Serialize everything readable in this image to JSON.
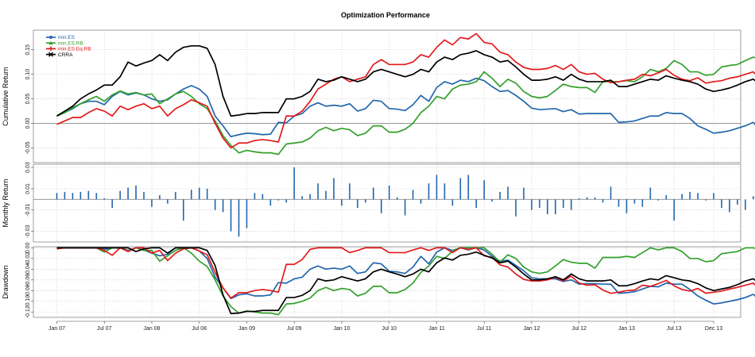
{
  "chart_data": {
    "type": "line",
    "title": "Optimization Performance",
    "x_ticks": [
      "Jan 07",
      "Jul 07",
      "Jan 08",
      "Jul 08",
      "Jan 09",
      "Jul 09",
      "Jan 10",
      "Jul 10",
      "Jan 11",
      "Jul 11",
      "Jan 12",
      "Jul 12",
      "Jan 13",
      "Jul 13",
      "Dec 13"
    ],
    "legend": {
      "position": "top-left"
    },
    "colors": {
      "min.ES": "#2166ac",
      "min.ES.RB": "#33a02c",
      "min.ES.Eq.RB": "#e31a1c",
      "CRRA": "#000000"
    },
    "panels": [
      {
        "name": "cumulative",
        "ylabel": "Cumulative Return",
        "ylim": [
          -0.08,
          0.19
        ],
        "y_ticks": [
          -0.05,
          0.0,
          0.05,
          0.1,
          0.15
        ],
        "y_tick_labels": [
          "-0.05",
          "0.00",
          "0.05",
          "0.10",
          "0.15"
        ],
        "zero_line": true,
        "series": [
          {
            "name": "min.ES",
            "values": [
              0.015,
              0.022,
              0.03,
              0.04,
              0.045,
              0.045,
              0.038,
              0.055,
              0.065,
              0.058,
              0.062,
              0.058,
              0.05,
              0.045,
              0.048,
              0.06,
              0.07,
              0.077,
              0.07,
              0.055,
              0.015,
              -0.005,
              -0.027,
              -0.023,
              -0.02,
              -0.021,
              -0.023,
              -0.022,
              0.002,
              0.001,
              0.015,
              0.02,
              0.035,
              0.042,
              0.035,
              0.037,
              0.035,
              0.04,
              0.025,
              0.03,
              0.047,
              0.045,
              0.03,
              0.029,
              0.026,
              0.038,
              0.057,
              0.045,
              0.073,
              0.085,
              0.08,
              0.088,
              0.085,
              0.092,
              0.087,
              0.075,
              0.065,
              0.067,
              0.057,
              0.045,
              0.031,
              0.028,
              0.029,
              0.03,
              0.024,
              0.028,
              0.019,
              0.02,
              0.02,
              0.02,
              0.02,
              0.002,
              0.003,
              0.005,
              0.01,
              0.015,
              0.015,
              0.022,
              0.02,
              0.02,
              0.01,
              -0.005,
              -0.012,
              -0.02,
              -0.018,
              -0.015,
              -0.01,
              -0.005,
              0.002,
              -0.015
            ]
          },
          {
            "name": "min.ES.RB",
            "values": [
              0.015,
              0.022,
              0.032,
              0.04,
              0.048,
              0.055,
              0.045,
              0.058,
              0.066,
              0.06,
              0.063,
              0.058,
              0.06,
              0.04,
              0.05,
              0.06,
              0.065,
              0.055,
              0.04,
              0.03,
              0.005,
              -0.025,
              -0.045,
              -0.06,
              -0.055,
              -0.058,
              -0.06,
              -0.06,
              -0.063,
              -0.042,
              -0.04,
              -0.038,
              -0.03,
              -0.015,
              -0.008,
              -0.015,
              -0.01,
              -0.013,
              -0.025,
              -0.02,
              -0.005,
              -0.005,
              -0.018,
              -0.018,
              -0.012,
              0.0,
              0.022,
              0.035,
              0.055,
              0.05,
              0.07,
              0.078,
              0.08,
              0.085,
              0.105,
              0.092,
              0.075,
              0.09,
              0.082,
              0.065,
              0.055,
              0.052,
              0.055,
              0.067,
              0.08,
              0.075,
              0.073,
              0.073,
              0.063,
              0.085,
              0.085,
              0.085,
              0.087,
              0.085,
              0.095,
              0.11,
              0.105,
              0.112,
              0.128,
              0.12,
              0.105,
              0.105,
              0.098,
              0.1,
              0.115,
              0.118,
              0.12,
              0.128,
              0.135,
              0.13
            ]
          },
          {
            "name": "min.ES.Eq.RB",
            "values": [
              -0.002,
              0.005,
              0.012,
              0.012,
              0.022,
              0.03,
              0.025,
              0.015,
              0.035,
              0.028,
              0.035,
              0.04,
              0.03,
              0.035,
              0.015,
              0.03,
              0.038,
              0.048,
              0.042,
              0.035,
              0.0,
              -0.03,
              -0.05,
              -0.04,
              -0.04,
              -0.035,
              -0.033,
              -0.035,
              -0.038,
              0.015,
              0.015,
              0.025,
              0.045,
              0.07,
              0.08,
              0.09,
              0.095,
              0.085,
              0.09,
              0.095,
              0.12,
              0.13,
              0.12,
              0.12,
              0.12,
              0.125,
              0.14,
              0.135,
              0.155,
              0.17,
              0.16,
              0.175,
              0.172,
              0.183,
              0.165,
              0.162,
              0.145,
              0.14,
              0.125,
              0.114,
              0.11,
              0.11,
              0.112,
              0.118,
              0.11,
              0.12,
              0.105,
              0.1,
              0.102,
              0.09,
              0.083,
              0.085,
              0.088,
              0.09,
              0.1,
              0.097,
              0.103,
              0.11,
              0.098,
              0.09,
              0.087,
              0.093,
              0.082,
              0.085,
              0.087,
              0.092,
              0.095,
              0.1,
              0.105,
              0.088
            ]
          },
          {
            "name": "CRRA",
            "values": [
              0.015,
              0.025,
              0.035,
              0.05,
              0.06,
              0.068,
              0.078,
              0.078,
              0.095,
              0.125,
              0.117,
              0.123,
              0.128,
              0.14,
              0.128,
              0.145,
              0.155,
              0.158,
              0.158,
              0.153,
              0.12,
              0.055,
              0.015,
              0.017,
              0.02,
              0.02,
              0.022,
              0.022,
              0.022,
              0.05,
              0.05,
              0.055,
              0.065,
              0.09,
              0.085,
              0.088,
              0.095,
              0.09,
              0.085,
              0.09,
              0.105,
              0.11,
              0.105,
              0.1,
              0.095,
              0.1,
              0.11,
              0.105,
              0.125,
              0.135,
              0.13,
              0.14,
              0.143,
              0.148,
              0.14,
              0.135,
              0.125,
              0.128,
              0.115,
              0.1,
              0.088,
              0.088,
              0.09,
              0.095,
              0.088,
              0.1,
              0.09,
              0.085,
              0.085,
              0.085,
              0.088,
              0.075,
              0.075,
              0.08,
              0.085,
              0.09,
              0.088,
              0.097,
              0.092,
              0.088,
              0.085,
              0.08,
              0.07,
              0.065,
              0.068,
              0.072,
              0.078,
              0.085,
              0.09,
              0.078
            ]
          }
        ]
      },
      {
        "name": "monthly",
        "ylabel": "Monthly Return",
        "ylim": [
          -0.04,
          0.033
        ],
        "y_ticks": [
          -0.03,
          -0.01,
          0.01,
          0.03
        ],
        "y_tick_labels": [
          "-0.03",
          "-0.01",
          "0.01",
          "0.03"
        ],
        "zero_line": true,
        "series": [
          {
            "name": "min.ES",
            "values": [
              0.006,
              0.007,
              0.006,
              0.007,
              0.008,
              0.006,
              0.001,
              -0.008,
              0.008,
              0.011,
              0.013,
              0.007,
              -0.007,
              0.004,
              -0.004,
              0.007,
              -0.02,
              0.009,
              0.011,
              0.01,
              -0.01,
              -0.012,
              -0.03,
              -0.035,
              -0.027,
              0.006,
              0.005,
              -0.006,
              -0.001,
              -0.003,
              0.03,
              0.003,
              0.005,
              0.015,
              0.008,
              0.02,
              -0.006,
              0.015,
              -0.008,
              -0.003,
              0.011,
              -0.013,
              0.013,
              0.002,
              -0.015,
              0.009,
              -0.004,
              0.015,
              0.023,
              0.015,
              -0.006,
              0.02,
              0.023,
              -0.008,
              0.018,
              -0.002,
              0.007,
              0.012,
              -0.016,
              0.011,
              -0.01,
              -0.008,
              -0.014,
              -0.014,
              -0.008,
              -0.01,
              0.001,
              0.002,
              0.002,
              -0.003,
              0.012,
              -0.007,
              -0.013,
              -0.004,
              -0.007,
              0.011,
              -0.001,
              0.004,
              -0.02,
              0.005,
              0.007,
              0.006,
              -0.001,
              0.006,
              -0.008,
              -0.012,
              -0.005,
              -0.01,
              0.003,
              0.004,
              0.008,
              0.007,
              -0.017
            ]
          }
        ]
      },
      {
        "name": "drawdown",
        "ylabel": "Drawdown",
        "ylim": [
          -0.13,
          0.002
        ],
        "y_ticks": [
          -0.12,
          -0.1,
          -0.08,
          -0.06,
          -0.04,
          -0.02,
          0.0
        ],
        "y_tick_labels": [
          "-0.12",
          "-0.10",
          "-0.08",
          "-0.06",
          "-0.04",
          "-0.02",
          "0.00"
        ],
        "zero_line": false,
        "series": [
          {
            "name": "min.ES",
            "values": [
              0,
              0,
              0,
              0,
              0,
              0,
              -0.003,
              0,
              0,
              -0.005,
              0,
              -0.004,
              -0.01,
              -0.015,
              -0.012,
              0,
              0,
              0,
              -0.006,
              -0.02,
              -0.055,
              -0.075,
              -0.095,
              -0.088,
              -0.086,
              -0.09,
              -0.09,
              -0.088,
              -0.065,
              -0.066,
              -0.058,
              -0.055,
              -0.04,
              -0.034,
              -0.04,
              -0.038,
              -0.04,
              -0.034,
              -0.048,
              -0.045,
              -0.028,
              -0.03,
              -0.044,
              -0.045,
              -0.048,
              -0.036,
              -0.016,
              -0.03,
              -0.008,
              0,
              -0.005,
              0,
              -0.004,
              0,
              -0.004,
              -0.016,
              -0.025,
              -0.023,
              -0.033,
              -0.043,
              -0.056,
              -0.058,
              -0.058,
              -0.058,
              -0.063,
              -0.06,
              -0.068,
              -0.067,
              -0.067,
              -0.068,
              -0.068,
              -0.085,
              -0.084,
              -0.082,
              -0.077,
              -0.072,
              -0.073,
              -0.066,
              -0.068,
              -0.068,
              -0.078,
              -0.09,
              -0.098,
              -0.105,
              -0.103,
              -0.1,
              -0.097,
              -0.093,
              -0.087,
              -0.1
            ]
          },
          {
            "name": "min.ES.RB",
            "values": [
              0,
              0,
              0,
              0,
              0,
              0,
              -0.008,
              0,
              0,
              -0.006,
              0,
              -0.005,
              -0.005,
              -0.025,
              -0.015,
              -0.005,
              0,
              -0.01,
              -0.025,
              -0.035,
              -0.06,
              -0.09,
              -0.11,
              -0.122,
              -0.118,
              -0.12,
              -0.122,
              -0.122,
              -0.125,
              -0.105,
              -0.104,
              -0.1,
              -0.094,
              -0.08,
              -0.074,
              -0.08,
              -0.076,
              -0.078,
              -0.09,
              -0.085,
              -0.072,
              -0.072,
              -0.084,
              -0.084,
              -0.078,
              -0.066,
              -0.046,
              -0.034,
              -0.016,
              -0.02,
              -0.006,
              0,
              0,
              0,
              0,
              -0.012,
              -0.027,
              -0.013,
              -0.02,
              -0.036,
              -0.045,
              -0.048,
              -0.045,
              -0.034,
              -0.022,
              -0.027,
              -0.029,
              -0.029,
              -0.038,
              -0.018,
              -0.018,
              -0.018,
              -0.016,
              -0.018,
              -0.009,
              0,
              -0.004,
              0,
              0,
              -0.007,
              -0.02,
              -0.02,
              -0.026,
              -0.024,
              -0.011,
              -0.009,
              -0.007,
              0,
              0,
              -0.004
            ]
          },
          {
            "name": "min.ES.Eq.RB",
            "values": [
              -0.002,
              0,
              0,
              0,
              0,
              0,
              -0.005,
              -0.014,
              0,
              -0.007,
              0,
              0,
              -0.01,
              -0.005,
              -0.024,
              -0.01,
              -0.002,
              0,
              -0.006,
              -0.013,
              -0.046,
              -0.075,
              -0.094,
              -0.084,
              -0.084,
              -0.08,
              -0.078,
              -0.08,
              -0.083,
              -0.031,
              -0.031,
              -0.022,
              -0.003,
              0,
              0,
              0,
              0,
              -0.009,
              -0.005,
              0,
              0,
              0,
              -0.009,
              -0.009,
              -0.009,
              -0.004,
              0,
              -0.005,
              0,
              0,
              -0.009,
              0,
              -0.003,
              0,
              -0.015,
              -0.018,
              -0.032,
              -0.036,
              -0.049,
              -0.059,
              -0.062,
              -0.062,
              -0.06,
              -0.055,
              -0.062,
              -0.053,
              -0.066,
              -0.07,
              -0.069,
              -0.079,
              -0.085,
              -0.083,
              -0.08,
              -0.079,
              -0.07,
              -0.072,
              -0.067,
              -0.061,
              -0.071,
              -0.078,
              -0.081,
              -0.076,
              -0.085,
              -0.083,
              -0.081,
              -0.077,
              -0.074,
              -0.07,
              -0.066,
              -0.08
            ]
          },
          {
            "name": "CRRA",
            "values": [
              0,
              0,
              0,
              0,
              0,
              0,
              0,
              0,
              0,
              0,
              -0.007,
              -0.002,
              0,
              0,
              -0.01,
              0,
              0,
              0,
              0,
              -0.005,
              -0.033,
              -0.088,
              -0.123,
              -0.122,
              -0.119,
              -0.119,
              -0.117,
              -0.117,
              -0.117,
              -0.093,
              -0.093,
              -0.089,
              -0.08,
              -0.058,
              -0.062,
              -0.06,
              -0.054,
              -0.058,
              -0.062,
              -0.058,
              -0.045,
              -0.04,
              -0.045,
              -0.049,
              -0.054,
              -0.049,
              -0.04,
              -0.045,
              -0.028,
              -0.019,
              -0.023,
              -0.014,
              -0.012,
              -0.008,
              -0.014,
              -0.019,
              -0.028,
              -0.025,
              -0.036,
              -0.049,
              -0.06,
              -0.06,
              -0.058,
              -0.054,
              -0.06,
              -0.049,
              -0.058,
              -0.062,
              -0.062,
              -0.062,
              -0.06,
              -0.071,
              -0.071,
              -0.067,
              -0.062,
              -0.058,
              -0.06,
              -0.052,
              -0.056,
              -0.06,
              -0.062,
              -0.067,
              -0.075,
              -0.08,
              -0.077,
              -0.074,
              -0.069,
              -0.062,
              -0.058,
              -0.069
            ]
          }
        ]
      }
    ]
  }
}
